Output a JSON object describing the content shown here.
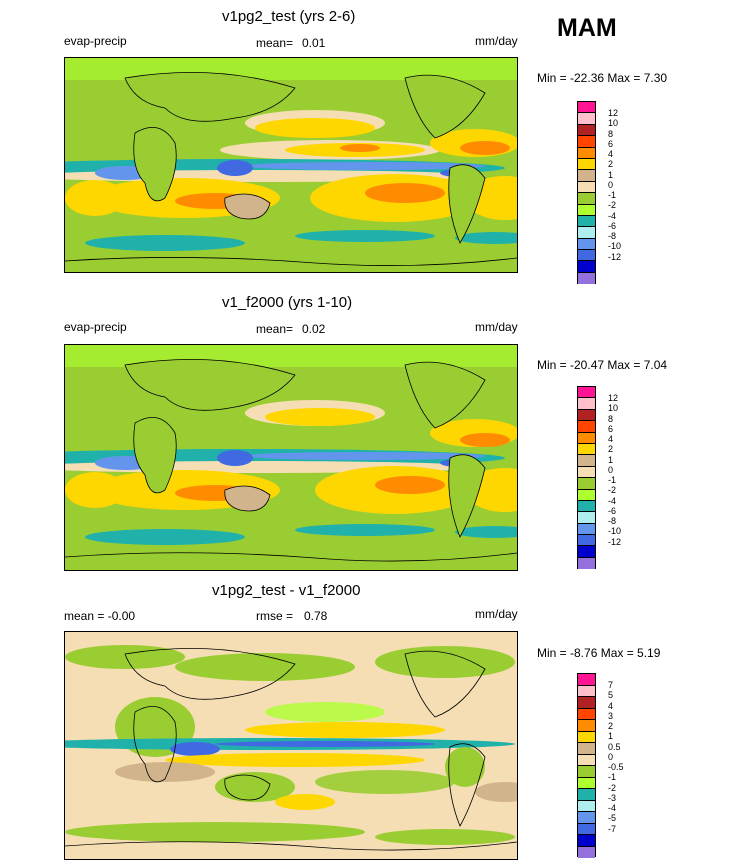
{
  "season": "MAM",
  "panels": [
    {
      "title": "v1pg2_test (yrs 2-6)",
      "left_label": "evap-precip",
      "stat1_label": "mean=",
      "stat1_value": "0.01",
      "stat2_label": "",
      "stat2_value": "",
      "units": "mm/day",
      "minmax": "Min = -22.36 Max =   7.30",
      "colorbar": {
        "levels": [
          "12",
          "10",
          "8",
          "6",
          "4",
          "2",
          "1",
          "0",
          "-1",
          "-2",
          "-4",
          "-6",
          "-8",
          "-10",
          "-12"
        ],
        "colors": [
          "#ff1493",
          "#ffc0cb",
          "#b22222",
          "#ff4500",
          "#ff8c00",
          "#ffd700",
          "#d2b48c",
          "#f5deb3",
          "#9acd32",
          "#adff2f",
          "#20b2aa",
          "#afeeee",
          "#6495ed",
          "#4169e1",
          "#0000cd",
          "#9370db"
        ]
      }
    },
    {
      "title": "v1_f2000 (yrs 1-10)",
      "left_label": "evap-precip",
      "stat1_label": "mean=",
      "stat1_value": "0.02",
      "stat2_label": "",
      "stat2_value": "",
      "units": "mm/day",
      "minmax": "Min = -20.47 Max =   7.04",
      "colorbar": {
        "levels": [
          "12",
          "10",
          "8",
          "6",
          "4",
          "2",
          "1",
          "0",
          "-1",
          "-2",
          "-4",
          "-6",
          "-8",
          "-10",
          "-12"
        ],
        "colors": [
          "#ff1493",
          "#ffc0cb",
          "#b22222",
          "#ff4500",
          "#ff8c00",
          "#ffd700",
          "#d2b48c",
          "#f5deb3",
          "#9acd32",
          "#adff2f",
          "#20b2aa",
          "#afeeee",
          "#6495ed",
          "#4169e1",
          "#0000cd",
          "#9370db"
        ]
      }
    },
    {
      "title": "v1pg2_test - v1_f2000",
      "left_label": "mean =  -0.00",
      "stat1_label": "rmse =",
      "stat1_value": "0.78",
      "stat2_label": "",
      "stat2_value": "",
      "units": "mm/day",
      "minmax": "Min =  -8.76 Max =   5.19",
      "colorbar": {
        "levels": [
          "7",
          "5",
          "4",
          "3",
          "2",
          "1",
          "0.5",
          "0",
          "-0.5",
          "-1",
          "-2",
          "-3",
          "-4",
          "-5",
          "-7"
        ],
        "colors": [
          "#ff1493",
          "#ffc0cb",
          "#b22222",
          "#ff4500",
          "#ff8c00",
          "#ffd700",
          "#d2b48c",
          "#f5deb3",
          "#9acd32",
          "#adff2f",
          "#20b2aa",
          "#afeeee",
          "#6495ed",
          "#4169e1",
          "#0000cd",
          "#9370db"
        ]
      }
    }
  ],
  "chart_data": [
    {
      "type": "heatmap",
      "title": "v1pg2_test (yrs 2-6)",
      "variable": "evap-precip",
      "units": "mm/day",
      "mean": 0.01,
      "min": -22.36,
      "max": 7.3,
      "levels": [
        -12,
        -10,
        -8,
        -6,
        -4,
        -2,
        -1,
        0,
        1,
        2,
        4,
        6,
        8,
        10,
        12
      ]
    },
    {
      "type": "heatmap",
      "title": "v1_f2000 (yrs 1-10)",
      "variable": "evap-precip",
      "units": "mm/day",
      "mean": 0.02,
      "min": -20.47,
      "max": 7.04,
      "levels": [
        -12,
        -10,
        -8,
        -6,
        -4,
        -2,
        -1,
        0,
        1,
        2,
        4,
        6,
        8,
        10,
        12
      ]
    },
    {
      "type": "heatmap",
      "title": "v1pg2_test - v1_f2000",
      "units": "mm/day",
      "mean": -0.0,
      "rmse": 0.78,
      "min": -8.76,
      "max": 5.19,
      "levels": [
        -7,
        -5,
        -4,
        -3,
        -2,
        -1,
        -0.5,
        0,
        0.5,
        1,
        2,
        3,
        4,
        5,
        7
      ]
    }
  ]
}
